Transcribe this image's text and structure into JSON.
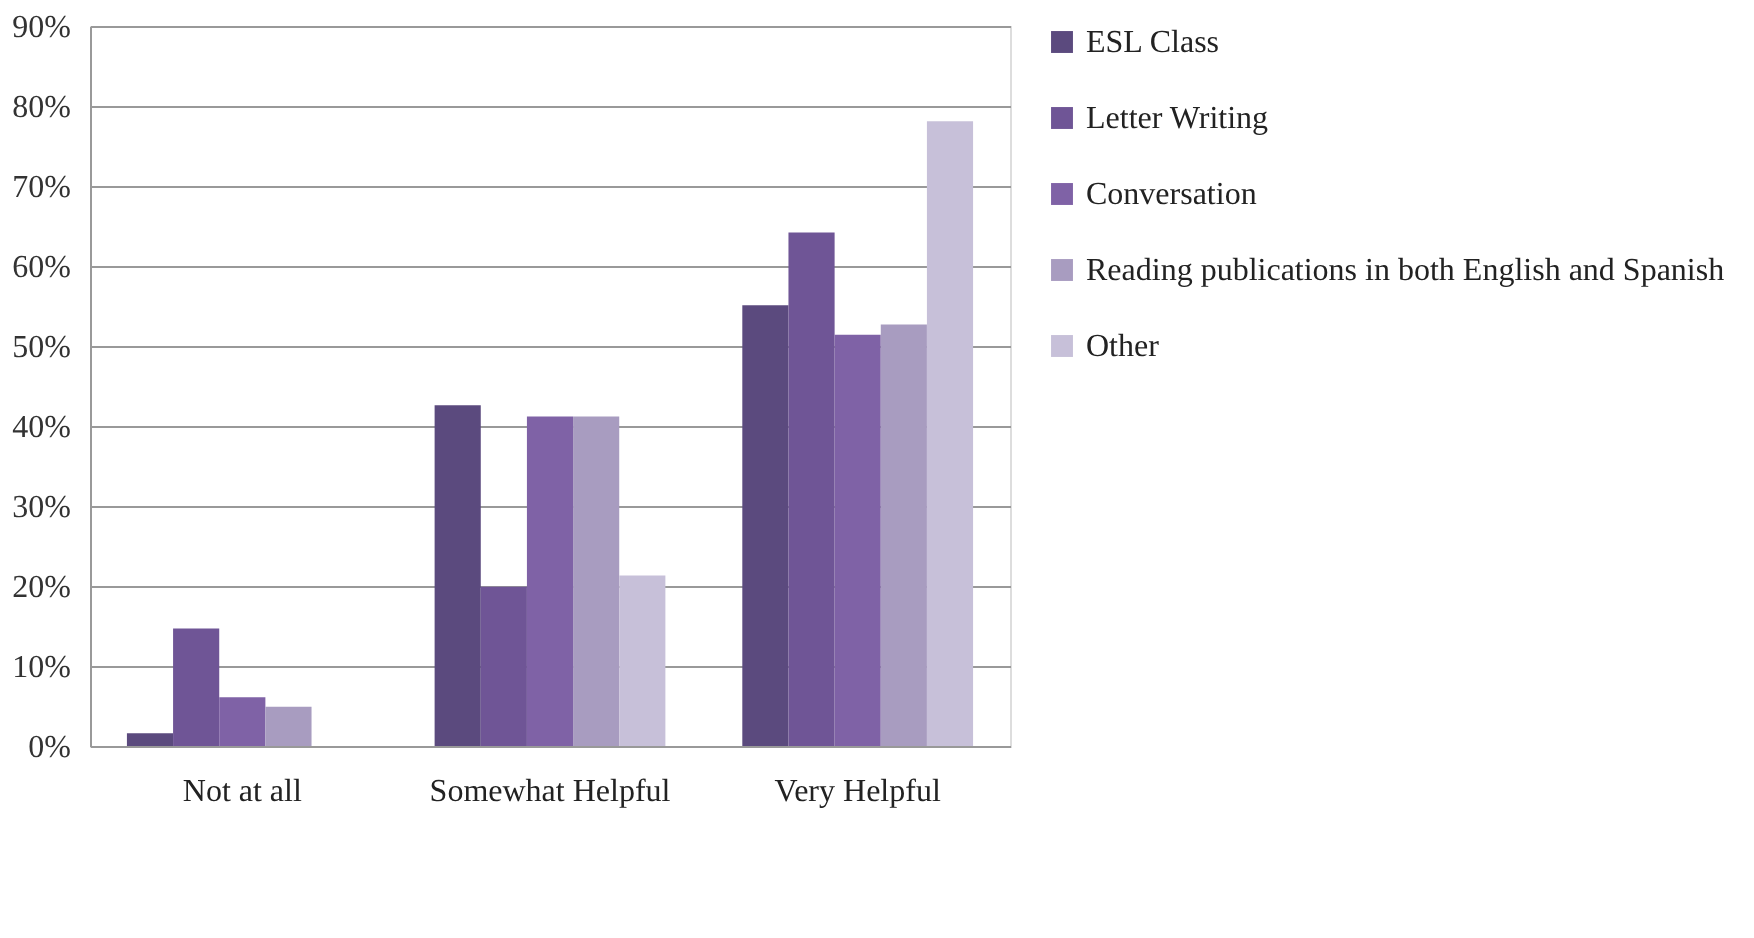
{
  "chart_data": {
    "type": "bar",
    "categories": [
      "Not at all",
      "Somewhat Helpful",
      "Very Helpful"
    ],
    "series": [
      {
        "name": "ESL Class",
        "color": "#5b4a7e",
        "values": [
          1.6,
          42.6,
          55.1
        ]
      },
      {
        "name": "Letter Writing",
        "color": "#6f5596",
        "values": [
          14.7,
          19.9,
          64.2
        ]
      },
      {
        "name": "Conversation",
        "color": "#7f62a6",
        "values": [
          6.1,
          41.2,
          51.4
        ]
      },
      {
        "name": "Reading publications in both English and Spanish",
        "color": "#a89cc0",
        "values": [
          4.9,
          41.2,
          52.7
        ]
      },
      {
        "name": "Other",
        "color": "#c7c0d9",
        "values": [
          0,
          21.3,
          78.1
        ]
      }
    ],
    "ylim": [
      0,
      90
    ],
    "yticks": [
      {
        "value": 0,
        "label": "0%"
      },
      {
        "value": 10,
        "label": "10%"
      },
      {
        "value": 20,
        "label": "20%"
      },
      {
        "value": 30,
        "label": "30%"
      },
      {
        "value": 40,
        "label": "40%"
      },
      {
        "value": 50,
        "label": "50%"
      },
      {
        "value": 60,
        "label": "60%"
      },
      {
        "value": 70,
        "label": "70%"
      },
      {
        "value": 80,
        "label": "80%"
      },
      {
        "value": 90,
        "label": "90%"
      }
    ],
    "grid": "y",
    "legend": "right"
  }
}
